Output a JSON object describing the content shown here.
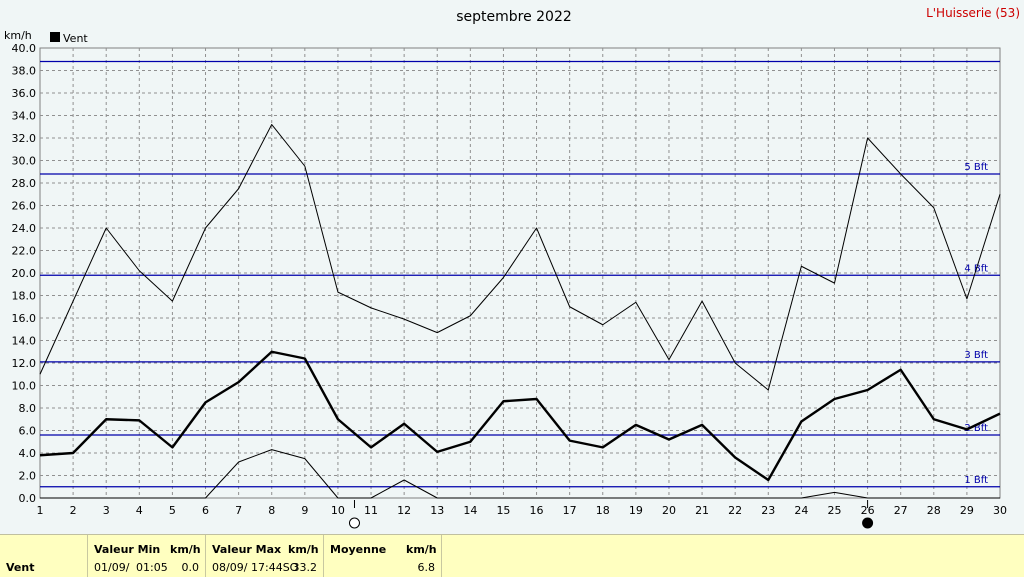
{
  "chart_data": {
    "type": "line",
    "title": "septembre 2022",
    "location": "L'Huisserie (53)",
    "ylabel": "km/h",
    "ylim": [
      0,
      40
    ],
    "ytick_step": 2,
    "x": [
      1,
      2,
      3,
      4,
      5,
      6,
      7,
      8,
      9,
      10,
      11,
      12,
      13,
      14,
      15,
      16,
      17,
      18,
      19,
      20,
      21,
      22,
      23,
      24,
      25,
      26,
      27,
      28,
      29,
      30
    ],
    "legend": [
      {
        "name": "Vent",
        "color": "#000000"
      }
    ],
    "series": [
      {
        "name": "Vent",
        "role": "mean",
        "color": "#000000",
        "values": [
          3.8,
          4.0,
          7.0,
          6.9,
          4.5,
          8.5,
          10.3,
          13.0,
          12.4,
          7.0,
          4.5,
          6.6,
          4.1,
          5.0,
          8.6,
          8.8,
          5.1,
          4.5,
          6.5,
          5.2,
          6.5,
          3.6,
          1.6,
          6.8,
          8.8,
          9.6,
          11.4,
          7.0,
          6.1,
          7.5
        ]
      },
      {
        "role": "max",
        "color": "#000000",
        "values": [
          11.0,
          17.5,
          24.0,
          20.2,
          17.5,
          24.0,
          27.5,
          33.2,
          29.5,
          18.3,
          16.9,
          15.9,
          14.7,
          16.2,
          19.6,
          24.0,
          17.0,
          15.4,
          17.4,
          12.3,
          17.5,
          12.0,
          9.6,
          20.6,
          19.1,
          32.0,
          28.8,
          25.8,
          17.7,
          27.0
        ]
      },
      {
        "role": "min",
        "color": "#000000",
        "values": [
          0,
          0,
          0,
          0,
          0,
          0,
          3.2,
          4.3,
          3.5,
          0,
          0,
          1.6,
          0,
          0,
          0,
          0,
          0,
          0,
          0,
          0,
          0,
          0,
          0,
          0,
          0.5,
          0,
          0,
          0,
          0,
          0
        ]
      }
    ],
    "beaufort_lines": [
      {
        "value": 1.0,
        "label": "1 Bft"
      },
      {
        "value": 5.6,
        "label": "2 Bft"
      },
      {
        "value": 12.1,
        "label": "3 Bft"
      },
      {
        "value": 19.8,
        "label": "4 Bft"
      },
      {
        "value": 28.8,
        "label": "5 Bft"
      },
      {
        "value": 38.8,
        "label": ""
      }
    ],
    "moon_phases": [
      {
        "day": 10.5,
        "phase": "full"
      },
      {
        "day": 26,
        "phase": "new"
      }
    ],
    "grid": true
  },
  "summary": {
    "series_label": "Vent",
    "min_header": "Valeur Min",
    "min_unit": "km/h",
    "min_date": "01/09/",
    "min_time": "01:05",
    "min_value": "0.0",
    "max_header": "Valeur Max",
    "max_unit": "km/h",
    "max_date": "08/09/",
    "max_time": "17:44SO",
    "max_value": "33.2",
    "avg_header": "Moyenne",
    "avg_unit": "km/h",
    "avg_value": "6.8"
  },
  "colors": {
    "background": "#f0f6f6",
    "plot_background": "#f0f6f6",
    "beaufort_line": "#0000aa",
    "grid": "#909090",
    "location_text": "#cc0000",
    "footer_background": "#ffffc0"
  }
}
